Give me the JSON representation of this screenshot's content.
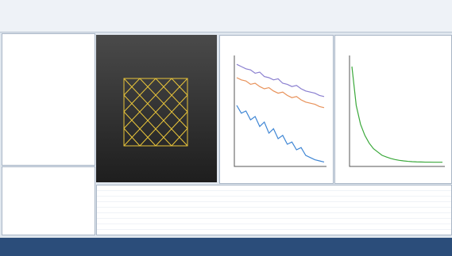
{
  "plots": [
    {
      "type": "line",
      "ylim": [
        0,
        1
      ],
      "series": [
        {
          "color": "#8a7fd0",
          "values": [
            0.92,
            0.9,
            0.88,
            0.87,
            0.84,
            0.85,
            0.81,
            0.8,
            0.78,
            0.79,
            0.75,
            0.74,
            0.72,
            0.73,
            0.7,
            0.68,
            0.67,
            0.66,
            0.64,
            0.63
          ]
        },
        {
          "color": "#e8925a",
          "values": [
            0.8,
            0.78,
            0.77,
            0.74,
            0.75,
            0.72,
            0.7,
            0.71,
            0.68,
            0.66,
            0.67,
            0.64,
            0.62,
            0.63,
            0.6,
            0.58,
            0.57,
            0.56,
            0.54,
            0.53
          ]
        },
        {
          "color": "#3f86d4",
          "values": [
            0.55,
            0.48,
            0.5,
            0.42,
            0.45,
            0.36,
            0.4,
            0.3,
            0.34,
            0.25,
            0.28,
            0.2,
            0.22,
            0.15,
            0.17,
            0.1,
            0.08,
            0.06,
            0.05,
            0.04
          ]
        }
      ]
    },
    {
      "type": "line",
      "ylim": [
        0,
        1
      ],
      "series": [
        {
          "color": "#3aa83a",
          "values": [
            0.9,
            0.55,
            0.38,
            0.28,
            0.21,
            0.16,
            0.13,
            0.1,
            0.085,
            0.072,
            0.062,
            0.055,
            0.05,
            0.046,
            0.043,
            0.041,
            0.04,
            0.039,
            0.039,
            0.038,
            0.038,
            0.038
          ]
        }
      ]
    }
  ]
}
